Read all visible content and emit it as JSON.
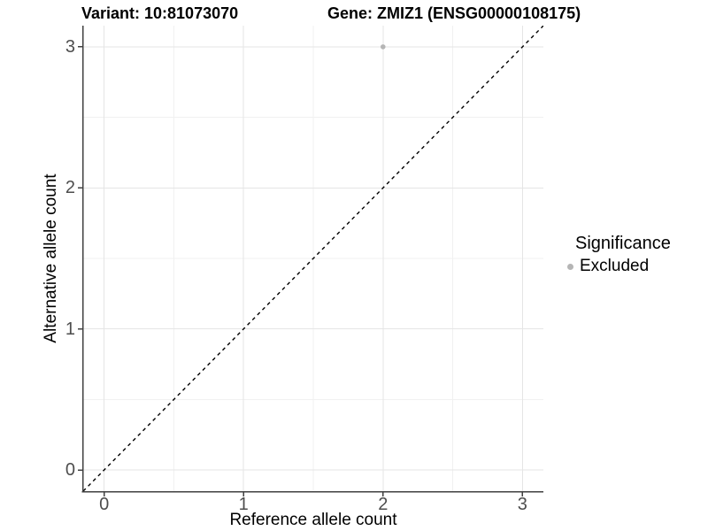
{
  "titles": {
    "variant": "Variant: 10:81073070",
    "gene": "Gene: ZMIZ1 (ENSG00000108175)"
  },
  "legend": {
    "title": "Significance",
    "items": [
      {
        "label": "Excluded",
        "color": "#b5b5b5",
        "marker": "circle-icon"
      }
    ]
  },
  "colors": {
    "background": "#ffffff",
    "major_grid": "#e5e5e5",
    "minor_grid": "#f1f1f1",
    "axis_line": "#404040",
    "tick_label": "#4d4d4d",
    "reference_line": "#000000",
    "point": "#b5b5b5"
  },
  "chart_data": {
    "type": "scatter",
    "title_left": "Variant: 10:81073070",
    "title_right": "Gene: ZMIZ1 (ENSG00000108175)",
    "xlabel": "Reference allele count",
    "ylabel": "Alternative allele count",
    "xlim": [
      -0.15,
      3.15
    ],
    "ylim": [
      -0.15,
      3.15
    ],
    "x_ticks": [
      0,
      1,
      2,
      3
    ],
    "y_ticks": [
      0,
      1,
      2,
      3
    ],
    "x_minor_ticks": [
      0.5,
      1.5,
      2.5
    ],
    "y_minor_ticks": [
      0.5,
      1.5,
      2.5
    ],
    "grid": "on",
    "legend_position": "right",
    "legend_title": "Significance",
    "series": [
      {
        "name": "Excluded",
        "color": "#b5b5b5",
        "points": [
          {
            "x": 2,
            "y": 3
          }
        ]
      }
    ],
    "reference_line": {
      "slope": 1,
      "intercept": 0,
      "style": "dashed",
      "color": "#000000"
    }
  }
}
